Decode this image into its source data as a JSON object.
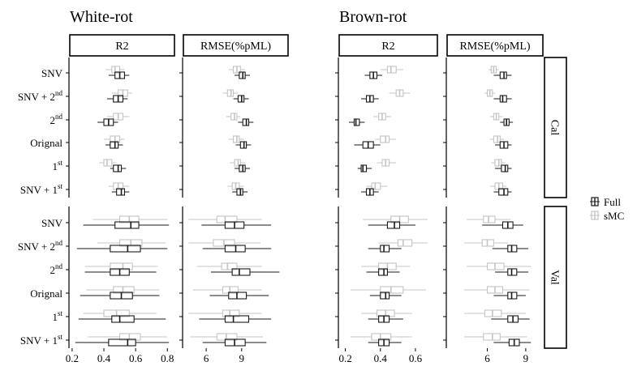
{
  "colors": {
    "full": "#1a1a1a",
    "smc": "#c4c4c4",
    "frame": "#000000"
  },
  "chart_data": {
    "type": "boxplot",
    "rows": [
      "SNV",
      "SNV + 2nd",
      "2nd",
      "Orignal",
      "1st",
      "SNV + 1st"
    ],
    "row_labels": [
      {
        "base": "SNV",
        "sup": ""
      },
      {
        "base": "SNV + 2",
        "sup": "nd"
      },
      {
        "base": "2",
        "sup": "nd"
      },
      {
        "base": "Orignal",
        "sup": ""
      },
      {
        "base": "1",
        "sup": "st"
      },
      {
        "base": "SNV + 1",
        "sup": "st"
      }
    ],
    "facet_rows": [
      "Cal",
      "Val"
    ],
    "metrics": [
      "R2",
      "RMSE(%pML)"
    ],
    "legend": [
      {
        "key": "Full",
        "label": "Full"
      },
      {
        "key": "smc",
        "label": "sMC"
      }
    ],
    "panels": [
      {
        "title": "White-rot",
        "axes": [
          {
            "metric": "R2",
            "ticks": [
              "0.2",
              "0.4",
              "0.6",
              "0.8"
            ],
            "xlim": [
              0.18,
              0.85
            ]
          },
          {
            "metric": "RMSE(%pML)",
            "ticks": [
              "6",
              "9"
            ],
            "xlim": [
              4,
              13
            ]
          }
        ],
        "data": {
          "Cal": {
            "R2": {
              "full": [
                [
                  0.43,
                  0.47,
                  0.5,
                  0.53,
                  0.56
                ],
                [
                  0.42,
                  0.46,
                  0.49,
                  0.52,
                  0.55
                ],
                [
                  0.36,
                  0.4,
                  0.43,
                  0.46,
                  0.49
                ],
                [
                  0.41,
                  0.44,
                  0.47,
                  0.49,
                  0.52
                ],
                [
                  0.44,
                  0.46,
                  0.49,
                  0.51,
                  0.54
                ],
                [
                  0.45,
                  0.48,
                  0.51,
                  0.53,
                  0.56
                ]
              ],
              "smc": [
                [
                  0.41,
                  0.45,
                  0.47,
                  0.5,
                  0.53
                ],
                [
                  0.45,
                  0.49,
                  0.52,
                  0.55,
                  0.58
                ],
                [
                  0.42,
                  0.46,
                  0.49,
                  0.52,
                  0.56
                ],
                [
                  0.4,
                  0.44,
                  0.47,
                  0.5,
                  0.53
                ],
                [
                  0.37,
                  0.4,
                  0.42,
                  0.45,
                  0.48
                ],
                [
                  0.43,
                  0.46,
                  0.49,
                  0.52,
                  0.56
                ]
              ]
            },
            "RMSE(%pML)": {
              "full": [
                [
                  8.4,
                  8.8,
                  9.1,
                  9.3,
                  9.7
                ],
                [
                  8.3,
                  8.7,
                  9.0,
                  9.2,
                  9.6
                ],
                [
                  8.7,
                  9.1,
                  9.4,
                  9.6,
                  10.0
                ],
                [
                  8.5,
                  8.9,
                  9.2,
                  9.4,
                  9.8
                ],
                [
                  8.4,
                  8.8,
                  9.1,
                  9.3,
                  9.7
                ],
                [
                  8.2,
                  8.6,
                  8.9,
                  9.1,
                  9.5
                ]
              ],
              "smc": [
                [
                  7.9,
                  8.3,
                  8.6,
                  8.9,
                  9.3
                ],
                [
                  7.4,
                  7.8,
                  8.1,
                  8.3,
                  8.7
                ],
                [
                  7.7,
                  8.1,
                  8.4,
                  8.6,
                  8.9
                ],
                [
                  7.9,
                  8.3,
                  8.6,
                  8.8,
                  9.2
                ],
                [
                  8.0,
                  8.4,
                  8.7,
                  8.9,
                  9.3
                ],
                [
                  7.8,
                  8.2,
                  8.5,
                  8.8,
                  9.2
                ]
              ]
            }
          },
          "Val": {
            "R2": {
              "full": [
                [
                  0.27,
                  0.47,
                  0.57,
                  0.62,
                  0.81
                ],
                [
                  0.23,
                  0.44,
                  0.55,
                  0.63,
                  0.8
                ],
                [
                  0.28,
                  0.44,
                  0.5,
                  0.56,
                  0.73
                ],
                [
                  0.25,
                  0.44,
                  0.51,
                  0.58,
                  0.75
                ],
                [
                  0.24,
                  0.45,
                  0.5,
                  0.59,
                  0.79
                ],
                [
                  0.22,
                  0.43,
                  0.55,
                  0.6,
                  0.81
                ]
              ],
              "smc": [
                [
                  0.33,
                  0.5,
                  0.56,
                  0.62,
                  0.8
                ],
                [
                  0.36,
                  0.5,
                  0.57,
                  0.64,
                  0.79
                ],
                [
                  0.28,
                  0.44,
                  0.52,
                  0.58,
                  0.74
                ],
                [
                  0.29,
                  0.46,
                  0.52,
                  0.59,
                  0.75
                ],
                [
                  0.27,
                  0.4,
                  0.48,
                  0.56,
                  0.73
                ],
                [
                  0.3,
                  0.5,
                  0.56,
                  0.63,
                  0.8
                ]
              ]
            },
            "RMSE(%pML)": {
              "full": [
                [
                  5.6,
                  7.6,
                  8.4,
                  9.2,
                  11.5
                ],
                [
                  5.7,
                  7.6,
                  8.5,
                  9.3,
                  11.5
                ],
                [
                  6.4,
                  8.2,
                  8.8,
                  9.7,
                  12.2
                ],
                [
                  6.3,
                  7.9,
                  8.6,
                  9.4,
                  11.3
                ],
                [
                  5.4,
                  7.6,
                  8.3,
                  9.6,
                  11.5
                ],
                [
                  5.7,
                  7.6,
                  8.4,
                  9.3,
                  11.1
                ]
              ],
              "smc": [
                [
                  4.5,
                  6.9,
                  7.6,
                  8.6,
                  10.7
                ],
                [
                  4.5,
                  6.6,
                  7.5,
                  8.4,
                  10.6
                ],
                [
                  5.2,
                  7.3,
                  7.8,
                  8.6,
                  10.7
                ],
                [
                  4.9,
                  7.4,
                  8.0,
                  8.7,
                  10.7
                ],
                [
                  4.5,
                  7.4,
                  8.0,
                  8.8,
                  10.7
                ],
                [
                  4.6,
                  6.9,
                  7.7,
                  8.6,
                  10.8
                ]
              ]
            }
          }
        }
      },
      {
        "title": "Brown-rot",
        "axes": [
          {
            "metric": "R2",
            "ticks": [
              "0.2",
              "0.4",
              "0.6"
            ],
            "xlim": [
              0.16,
              0.73
            ]
          },
          {
            "metric": "RMSE(%pML)",
            "ticks": [
              "6",
              "9"
            ],
            "xlim": [
              2.8,
              10.4
            ]
          }
        ],
        "data": {
          "Cal": {
            "R2": {
              "full": [
                [
                  0.31,
                  0.34,
                  0.36,
                  0.38,
                  0.41
                ],
                [
                  0.29,
                  0.32,
                  0.34,
                  0.36,
                  0.39
                ],
                [
                  0.22,
                  0.25,
                  0.26,
                  0.28,
                  0.31
                ],
                [
                  0.25,
                  0.3,
                  0.33,
                  0.36,
                  0.4
                ],
                [
                  0.27,
                  0.29,
                  0.3,
                  0.32,
                  0.35
                ],
                [
                  0.29,
                  0.32,
                  0.34,
                  0.36,
                  0.39
                ]
              ],
              "smc": [
                [
                  0.4,
                  0.44,
                  0.46,
                  0.49,
                  0.53
                ],
                [
                  0.45,
                  0.49,
                  0.51,
                  0.53,
                  0.57
                ],
                [
                  0.36,
                  0.39,
                  0.41,
                  0.43,
                  0.46
                ],
                [
                  0.37,
                  0.4,
                  0.43,
                  0.45,
                  0.49
                ],
                [
                  0.38,
                  0.41,
                  0.43,
                  0.45,
                  0.49
                ],
                [
                  0.32,
                  0.35,
                  0.37,
                  0.4,
                  0.44
                ]
              ]
            },
            "RMSE(%pML)": {
              "full": [
                [
                  6.5,
                  7.0,
                  7.3,
                  7.5,
                  7.9
                ],
                [
                  6.5,
                  7.0,
                  7.2,
                  7.5,
                  7.9
                ],
                [
                  7.0,
                  7.3,
                  7.5,
                  7.7,
                  8.0
                ],
                [
                  6.6,
                  7.0,
                  7.3,
                  7.6,
                  7.9
                ],
                [
                  6.6,
                  7.1,
                  7.4,
                  7.6,
                  7.9
                ],
                [
                  6.5,
                  6.9,
                  7.3,
                  7.6,
                  7.9
                ]
              ],
              "smc": [
                [
                  6.1,
                  6.3,
                  6.5,
                  6.7,
                  6.9
                ],
                [
                  5.8,
                  6.0,
                  6.2,
                  6.4,
                  6.6
                ],
                [
                  6.2,
                  6.5,
                  6.7,
                  6.9,
                  7.2
                ],
                [
                  6.2,
                  6.5,
                  6.8,
                  7.0,
                  7.3
                ],
                [
                  6.3,
                  6.6,
                  6.9,
                  7.1,
                  7.4
                ],
                [
                  6.2,
                  6.6,
                  6.9,
                  7.2,
                  7.5
                ]
              ]
            }
          },
          "Val": {
            "R2": {
              "full": [
                [
                  0.33,
                  0.44,
                  0.48,
                  0.51,
                  0.6
                ],
                [
                  0.33,
                  0.4,
                  0.42,
                  0.45,
                  0.52
                ],
                [
                  0.32,
                  0.39,
                  0.42,
                  0.44,
                  0.51
                ],
                [
                  0.34,
                  0.4,
                  0.43,
                  0.45,
                  0.52
                ],
                [
                  0.33,
                  0.39,
                  0.42,
                  0.45,
                  0.53
                ],
                [
                  0.33,
                  0.39,
                  0.42,
                  0.45,
                  0.52
                ]
              ],
              "smc": [
                [
                  0.3,
                  0.46,
                  0.51,
                  0.56,
                  0.67
                ],
                [
                  0.39,
                  0.5,
                  0.53,
                  0.58,
                  0.67
                ],
                [
                  0.29,
                  0.39,
                  0.44,
                  0.49,
                  0.57
                ],
                [
                  0.23,
                  0.4,
                  0.46,
                  0.53,
                  0.66
                ],
                [
                  0.29,
                  0.38,
                  0.43,
                  0.48,
                  0.58
                ],
                [
                  0.23,
                  0.35,
                  0.4,
                  0.46,
                  0.58
                ]
              ]
            },
            "RMSE(%pML)": {
              "full": [
                [
                  5.6,
                  7.2,
                  7.6,
                  8.0,
                  8.8
                ],
                [
                  6.4,
                  7.6,
                  7.9,
                  8.3,
                  9.2
                ],
                [
                  6.6,
                  7.6,
                  7.9,
                  8.3,
                  9.2
                ],
                [
                  6.5,
                  7.6,
                  7.9,
                  8.3,
                  9.0
                ],
                [
                  6.3,
                  7.6,
                  8.0,
                  8.4,
                  9.3
                ],
                [
                  6.5,
                  7.7,
                  8.1,
                  8.5,
                  9.4
                ]
              ],
              "smc": [
                [
                  4.4,
                  5.7,
                  6.1,
                  6.6,
                  7.8
                ],
                [
                  4.2,
                  5.6,
                  6.0,
                  6.5,
                  7.6
                ],
                [
                  4.4,
                  6.0,
                  6.6,
                  7.3,
                  9.4
                ],
                [
                  4.2,
                  6.0,
                  6.6,
                  7.2,
                  9.3
                ],
                [
                  4.2,
                  5.8,
                  6.4,
                  7.1,
                  9.0
                ],
                [
                  4.2,
                  5.7,
                  6.4,
                  7.0,
                  9.1
                ]
              ]
            }
          }
        }
      }
    ]
  }
}
